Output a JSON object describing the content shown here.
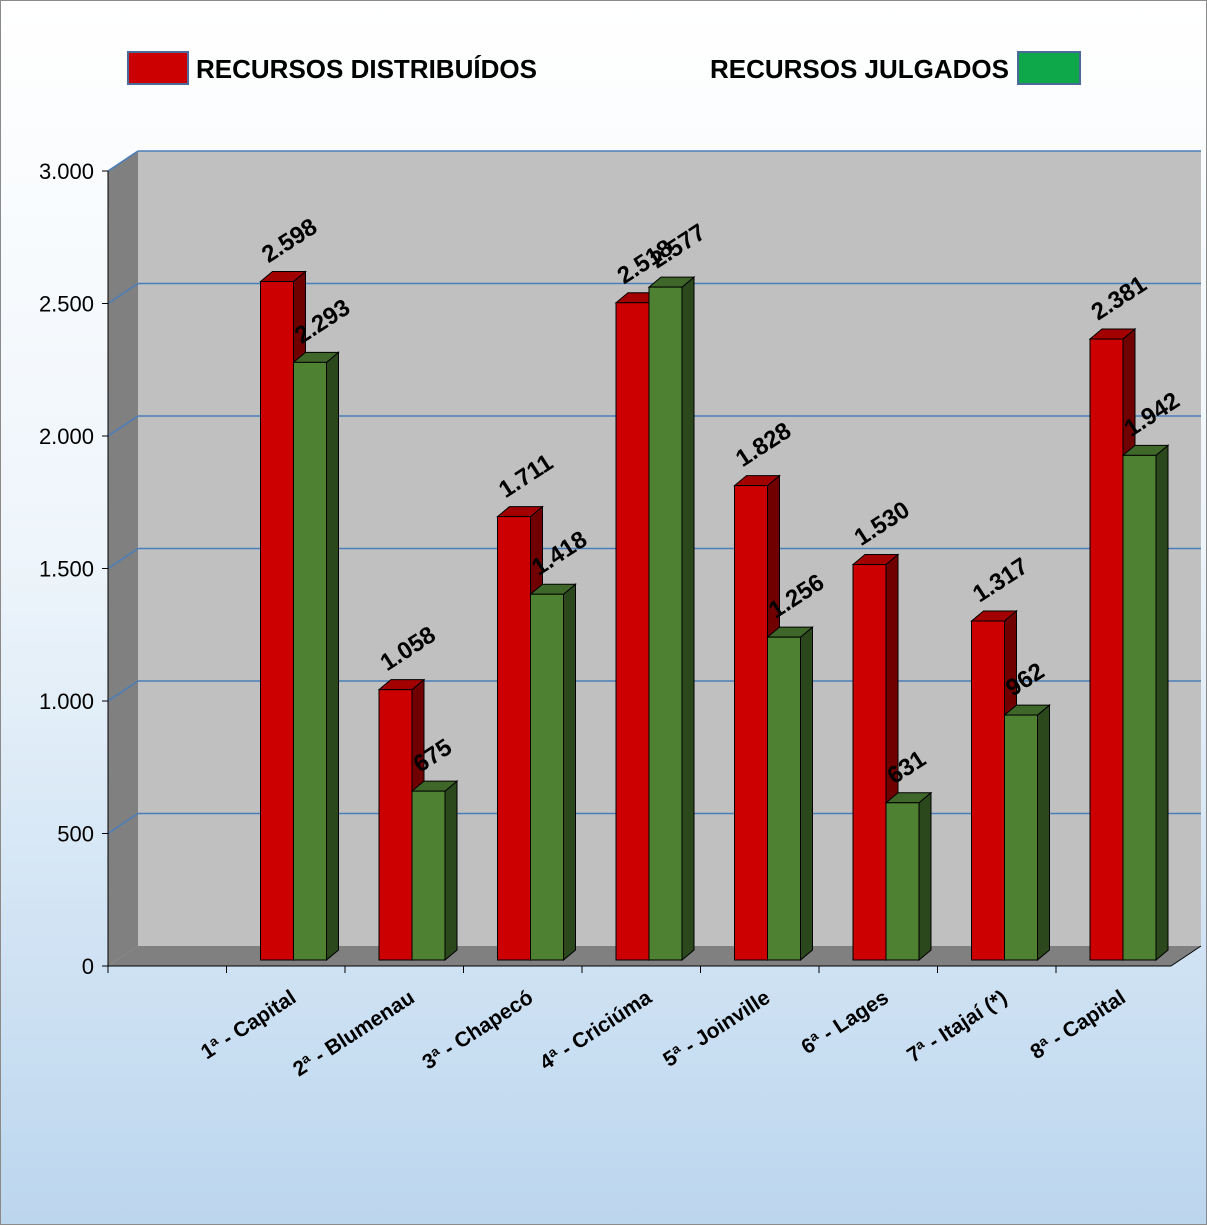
{
  "chart_data": {
    "type": "bar",
    "categories": [
      "1ª - Capital",
      "2ª - Blumenau",
      "3ª - Chapecó",
      "4ª - Criciúma",
      "5ª - Joinville",
      "6ª - Lages",
      "7ª - Itajaí (*)",
      "8ª - Capital"
    ],
    "series": [
      {
        "name": "RECURSOS DISTRIBUÍDOS",
        "color": "#cc0000",
        "values": [
          2598,
          1058,
          1711,
          2518,
          1828,
          1530,
          1317,
          2381
        ],
        "labels": [
          "2.598",
          "1.058",
          "1.711",
          "2.518",
          "1.828",
          "1.530",
          "1.317",
          "2.381"
        ]
      },
      {
        "name": "RECURSOS JULGADOS",
        "color": "#4f8133",
        "values": [
          2293,
          675,
          1418,
          2577,
          1256,
          631,
          962,
          1942
        ],
        "labels": [
          "2.293",
          "675",
          "1.418",
          "2.577",
          "1.256",
          "631",
          "962",
          "1.942"
        ]
      }
    ],
    "legend_swatch_colors": [
      "#cc0000",
      "#0ea84b"
    ],
    "yticks": [
      0,
      500,
      1000,
      1500,
      2000,
      2500,
      3000
    ],
    "ytick_labels": [
      "0",
      "500",
      "1.000",
      "1.500",
      "2.000",
      "2.500",
      "3.000"
    ],
    "ylim": [
      0,
      3000
    ],
    "grid": true,
    "legend_position": "top",
    "three_d": true
  }
}
